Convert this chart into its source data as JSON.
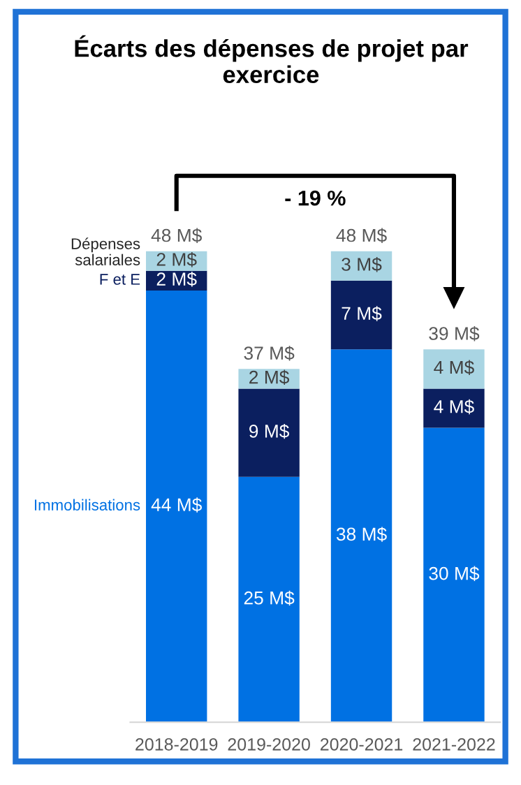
{
  "chart_data": {
    "type": "bar",
    "title": "Écarts des dépenses de projet par exercice",
    "categories": [
      "2018-2019",
      "2019-2020",
      "2020-2021",
      "2021-2022"
    ],
    "stacked": true,
    "legend": "left",
    "series": [
      {
        "name": "Immobilisations",
        "color": "#0071e3",
        "values": [
          44,
          25,
          38,
          30
        ],
        "value_labels": [
          "44 M$",
          "25 M$",
          "38 M$",
          "30 M$"
        ]
      },
      {
        "name": "F et E",
        "color": "#0b1f5f",
        "values": [
          2,
          9,
          7,
          4
        ],
        "value_labels": [
          "2 M$",
          "9 M$",
          "7 M$",
          "4 M$"
        ]
      },
      {
        "name": "Dépenses salariales",
        "color": "#a9d5e3",
        "values": [
          2,
          2,
          3,
          4
        ],
        "value_labels": [
          "2 M$",
          "2 M$",
          "3 M$",
          "4 M$"
        ]
      }
    ],
    "totals": [
      "48 M$",
      "37 M$",
      "48 M$",
      "39 M$"
    ],
    "annotations": [
      "- 19 %"
    ]
  }
}
